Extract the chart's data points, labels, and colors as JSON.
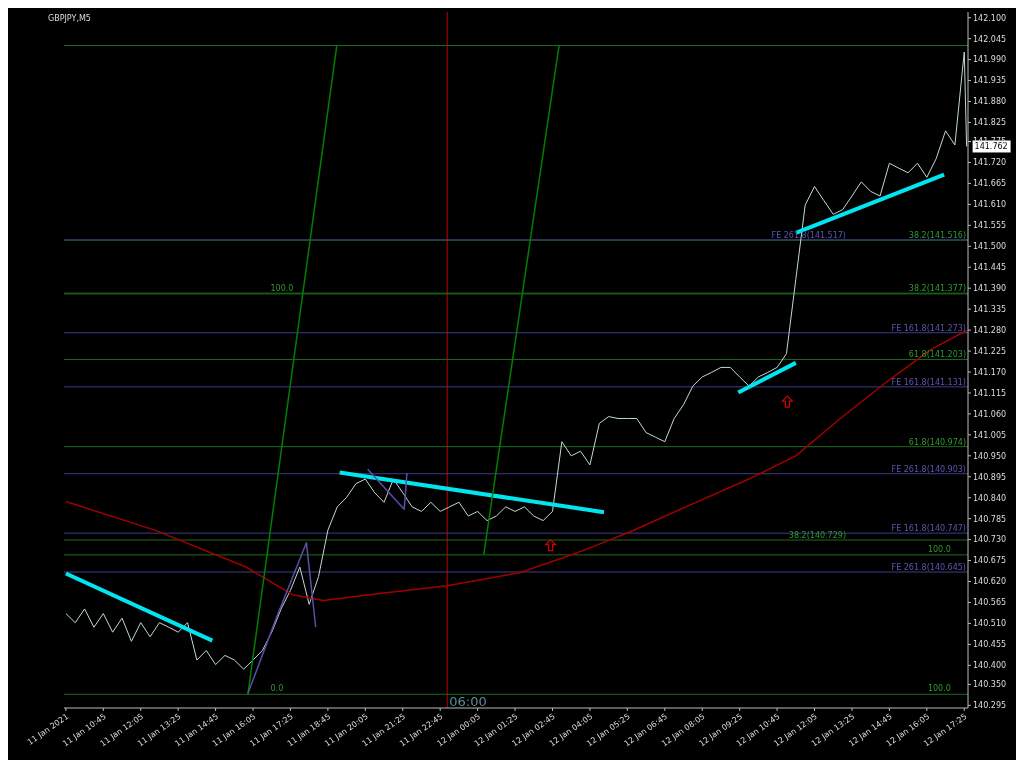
{
  "chart_data": {
    "type": "line",
    "title": "GBPJPY,M5",
    "grid": false,
    "x": [
      "2021-01-11T09:25",
      "2021-01-11T09:45",
      "2021-01-11T10:05",
      "2021-01-11T10:25",
      "2021-01-11T10:45",
      "2021-01-11T11:05",
      "2021-01-11T11:25",
      "2021-01-11T11:45",
      "2021-01-11T12:05",
      "2021-01-11T12:25",
      "2021-01-11T12:45",
      "2021-01-11T13:05",
      "2021-01-11T13:25",
      "2021-01-11T13:45",
      "2021-01-11T14:05",
      "2021-01-11T14:25",
      "2021-01-11T14:45",
      "2021-01-11T15:05",
      "2021-01-11T15:25",
      "2021-01-11T15:45",
      "2021-01-11T16:05",
      "2021-01-11T16:25",
      "2021-01-11T16:45",
      "2021-01-11T17:05",
      "2021-01-11T17:25",
      "2021-01-11T17:45",
      "2021-01-11T18:05",
      "2021-01-11T18:25",
      "2021-01-11T18:45",
      "2021-01-11T19:05",
      "2021-01-11T19:25",
      "2021-01-11T19:45",
      "2021-01-11T20:05",
      "2021-01-11T20:25",
      "2021-01-11T20:45",
      "2021-01-11T21:05",
      "2021-01-11T21:25",
      "2021-01-11T21:45",
      "2021-01-11T22:05",
      "2021-01-11T22:25",
      "2021-01-11T22:45",
      "2021-01-11T23:05",
      "2021-01-11T23:25",
      "2021-01-11T23:45",
      "2021-01-12T00:05",
      "2021-01-12T00:25",
      "2021-01-12T00:45",
      "2021-01-12T01:05",
      "2021-01-12T01:25",
      "2021-01-12T01:45",
      "2021-01-12T02:05",
      "2021-01-12T02:25",
      "2021-01-12T02:45",
      "2021-01-12T03:05",
      "2021-01-12T03:25",
      "2021-01-12T03:45",
      "2021-01-12T04:05",
      "2021-01-12T04:25",
      "2021-01-12T04:45",
      "2021-01-12T05:05",
      "2021-01-12T05:25",
      "2021-01-12T05:45",
      "2021-01-12T06:05",
      "2021-01-12T06:25",
      "2021-01-12T06:45",
      "2021-01-12T07:05",
      "2021-01-12T07:25",
      "2021-01-12T07:45",
      "2021-01-12T08:05",
      "2021-01-12T08:25",
      "2021-01-12T08:45",
      "2021-01-12T09:05",
      "2021-01-12T09:25",
      "2021-01-12T09:45",
      "2021-01-12T10:05",
      "2021-01-12T10:25",
      "2021-01-12T10:45",
      "2021-01-12T11:05",
      "2021-01-12T11:25",
      "2021-01-12T11:45",
      "2021-01-12T12:05",
      "2021-01-12T12:25",
      "2021-01-12T12:45",
      "2021-01-12T13:05",
      "2021-01-12T13:25",
      "2021-01-12T13:45",
      "2021-01-12T14:05",
      "2021-01-12T14:25",
      "2021-01-12T14:45",
      "2021-01-12T15:05",
      "2021-01-12T15:25",
      "2021-01-12T15:45",
      "2021-01-12T16:05",
      "2021-01-12T16:25",
      "2021-01-12T16:45",
      "2021-01-12T17:05",
      "2021-01-12T17:25",
      "2021-01-12T17:30"
    ],
    "series": [
      {
        "color": "#c0d8d8",
        "values": [
          140.536,
          140.512,
          140.548,
          140.5,
          140.536,
          140.487,
          140.524,
          140.463,
          140.512,
          140.475,
          140.512,
          140.5,
          140.487,
          140.512,
          140.414,
          140.439,
          140.402,
          140.426,
          140.414,
          140.39,
          140.414,
          140.439,
          140.487,
          140.548,
          140.597,
          140.658,
          140.56,
          140.633,
          140.755,
          140.816,
          140.841,
          140.877,
          140.889,
          140.853,
          140.828,
          140.889,
          140.853,
          140.816,
          140.804,
          140.828,
          140.804,
          140.816,
          140.828,
          140.792,
          140.804,
          140.78,
          140.792,
          140.816,
          140.804,
          140.816,
          140.792,
          140.78,
          140.804,
          140.987,
          140.95,
          140.962,
          140.926,
          141.035,
          141.053,
          141.048,
          141.048,
          141.048,
          141.011,
          140.999,
          140.987,
          141.048,
          141.084,
          141.133,
          141.157,
          141.169,
          141.182,
          141.182,
          141.157,
          141.133,
          141.157,
          141.169,
          141.182,
          141.218,
          141.413,
          141.608,
          141.657,
          141.62,
          141.584,
          141.596,
          141.632,
          141.669,
          141.644,
          141.632,
          141.718,
          141.705,
          141.693,
          141.718,
          141.681,
          141.73,
          141.803,
          141.766,
          142.01,
          141.762
        ]
      },
      {
        "type": "line",
        "color": "#a00000",
        "x": [
          "2021-01-11T09:25",
          "2021-01-11T12:35",
          "2021-01-11T15:50",
          "2021-01-11T17:30",
          "2021-01-11T18:35",
          "2021-01-11T20:45",
          "2021-01-11T23:00",
          "2021-01-12T01:35",
          "2021-01-12T03:35",
          "2021-01-12T05:30",
          "2021-01-12T07:30",
          "2021-01-12T09:45",
          "2021-01-12T11:25",
          "2021-01-12T13:00",
          "2021-01-12T14:40",
          "2021-01-12T16:15",
          "2021-01-12T17:30"
        ],
        "values": [
          140.83,
          140.755,
          140.658,
          140.585,
          140.57,
          140.59,
          140.609,
          140.643,
          140.694,
          140.75,
          140.816,
          140.889,
          140.95,
          141.048,
          141.145,
          141.23,
          141.279
        ]
      },
      {
        "type": "line",
        "color": "#00e5ee",
        "x": [
          "2021-01-11T09:25",
          "2021-01-11T14:38"
        ],
        "values": [
          140.641,
          140.465
        ]
      },
      {
        "type": "line",
        "color": "#00e5ee",
        "x": [
          "2021-01-11T19:10",
          "2021-01-12T04:35"
        ],
        "values": [
          140.906,
          140.802
        ]
      },
      {
        "type": "line",
        "color": "#00e5ee",
        "x": [
          "2021-01-12T09:22",
          "2021-01-12T11:25"
        ],
        "values": [
          141.116,
          141.194
        ]
      },
      {
        "type": "line",
        "color": "#00e5ee",
        "x": [
          "2021-01-12T11:25",
          "2021-01-12T16:42"
        ],
        "values": [
          141.535,
          141.688
        ]
      },
      {
        "type": "line",
        "color": "#008000",
        "x": [
          "2021-01-11T15:54",
          "2021-01-11T19:04"
        ],
        "values": [
          140.324,
          142.027
        ]
      },
      {
        "type": "line",
        "color": "#008000",
        "x": [
          "2021-01-12T00:18",
          "2021-01-12T02:59"
        ],
        "values": [
          140.69,
          142.027
        ]
      },
      {
        "type": "line",
        "color": "#5a4fa8",
        "x": [
          "2021-01-11T15:54",
          "2021-01-11T16:55",
          "2021-01-11T17:59",
          "2021-01-11T18:19"
        ],
        "values": [
          140.326,
          140.525,
          140.722,
          140.5
        ]
      },
      {
        "type": "line",
        "color": "#5a4fa8",
        "x": [
          "2021-01-11T20:10",
          "2021-01-11T21:28",
          "2021-01-11T21:34"
        ],
        "values": [
          140.915,
          140.81,
          140.905
        ]
      },
      {
        "type": "scatter",
        "color": "#d00000",
        "x": [
          "2021-01-12T02:41",
          "2021-01-12T11:07"
        ],
        "values": [
          140.714,
          141.091
        ]
      }
    ],
    "xlim": [
      "2021-01-11T09:21",
      "2021-01-12T17:33"
    ],
    "xticks": [
      {
        "value": "2021-01-11T09:25",
        "label": "11 Jan 2021"
      },
      {
        "value": "2021-01-11T10:45",
        "label": "11 Jan 10:45"
      },
      {
        "value": "2021-01-11T12:05",
        "label": "11 Jan 12:05"
      },
      {
        "value": "2021-01-11T13:25",
        "label": "11 Jan 13:25"
      },
      {
        "value": "2021-01-11T14:45",
        "label": "11 Jan 14:45"
      },
      {
        "value": "2021-01-11T16:05",
        "label": "11 Jan 16:05"
      },
      {
        "value": "2021-01-11T17:25",
        "label": "11 Jan 17:25"
      },
      {
        "value": "2021-01-11T18:45",
        "label": "11 Jan 18:45"
      },
      {
        "value": "2021-01-11T20:05",
        "label": "11 Jan 20:05"
      },
      {
        "value": "2021-01-11T21:25",
        "label": "11 Jan 21:25"
      },
      {
        "value": "2021-01-11T22:45",
        "label": "11 Jan 22:45"
      },
      {
        "value": "2021-01-12T00:05",
        "label": "12 Jan 00:05"
      },
      {
        "value": "2021-01-12T01:25",
        "label": "12 Jan 01:25"
      },
      {
        "value": "2021-01-12T02:45",
        "label": "12 Jan 02:45"
      },
      {
        "value": "2021-01-12T04:05",
        "label": "12 Jan 04:05"
      },
      {
        "value": "2021-01-12T05:25",
        "label": "12 Jan 05:25"
      },
      {
        "value": "2021-01-12T06:45",
        "label": "12 Jan 06:45"
      },
      {
        "value": "2021-01-12T08:05",
        "label": "12 Jan 08:05"
      },
      {
        "value": "2021-01-12T09:25",
        "label": "12 Jan 09:25"
      },
      {
        "value": "2021-01-12T10:45",
        "label": "12 Jan 10:45"
      },
      {
        "value": "2021-01-12T12:05",
        "label": "12 Jan 12:05"
      },
      {
        "value": "2021-01-12T13:25",
        "label": "12 Jan 13:25"
      },
      {
        "value": "2021-01-12T14:45",
        "label": "12 Jan 14:45"
      },
      {
        "value": "2021-01-12T16:05",
        "label": "12 Jan 16:05"
      },
      {
        "value": "2021-01-12T17:25",
        "label": "12 Jan 17:25"
      }
    ],
    "ylim": [
      140.288,
      142.115
    ],
    "yticks": [
      {
        "value": 142.1,
        "label": "142.100"
      },
      142.045,
      {
        "value": 141.99,
        "label": "141.990"
      },
      141.935,
      {
        "value": 141.88,
        "label": "141.880"
      },
      141.825,
      141.775,
      {
        "value": 141.72,
        "label": "141.720"
      },
      141.665,
      {
        "value": 141.61,
        "label": "141.610"
      },
      141.555,
      {
        "value": 141.5,
        "label": "141.500"
      },
      141.445,
      {
        "value": 141.39,
        "label": "141.390"
      },
      141.335,
      {
        "value": 141.28,
        "label": "141.280"
      },
      141.225,
      {
        "value": 141.17,
        "label": "141.170"
      },
      141.115,
      {
        "value": 141.06,
        "label": "141.060"
      },
      141.005,
      {
        "value": 140.95,
        "label": "140.950"
      },
      140.895,
      {
        "value": 140.84,
        "label": "140.840"
      },
      140.785,
      {
        "value": 140.73,
        "label": "140.730"
      },
      140.675,
      {
        "value": 140.62,
        "label": "140.620"
      },
      140.565,
      {
        "value": 140.51,
        "label": "140.510"
      },
      140.455,
      {
        "value": 140.4,
        "label": "140.400"
      },
      {
        "value": 140.35,
        "label": "140.350"
      },
      140.295
    ],
    "ref_lines": [
      {
        "axis": "x",
        "value": "2021-01-11T23:00",
        "label": "06:00",
        "color": "#c00000"
      },
      {
        "axis": "y",
        "value": 142.027,
        "label": null,
        "color": "#1e6a1e"
      },
      {
        "axis": "y",
        "value": 141.516,
        "label": "38.2(141.516)",
        "color": "#1e6a1e"
      },
      {
        "axis": "y",
        "value": 141.517,
        "label": "FE 261.8(141.517)",
        "color": "#3c3c8c"
      },
      {
        "axis": "y",
        "value": 141.377,
        "label": "38.2(141.377)",
        "color": "#1e6a1e"
      },
      {
        "axis": "y",
        "value": 141.375,
        "label": null,
        "color": "#1e6a1e"
      },
      {
        "axis": "y",
        "value": 141.273,
        "label": "FE 161.8(141.273)",
        "color": "#3c3c8c"
      },
      {
        "axis": "y",
        "value": 141.203,
        "label": "61.8(141.203)",
        "color": "#1e6a1e"
      },
      {
        "axis": "y",
        "value": 141.131,
        "label": "FE 161.8(141.131)",
        "color": "#3c3c8c"
      },
      {
        "axis": "y",
        "value": 140.974,
        "label": "61.8(140.974)",
        "color": "#1e6a1e"
      },
      {
        "axis": "y",
        "value": 140.903,
        "label": "FE 261.8(140.903)",
        "color": "#3c3c8c"
      },
      {
        "axis": "y",
        "value": 140.747,
        "label": "FE 161.8(140.747)",
        "color": "#3c3c8c"
      },
      {
        "axis": "y",
        "value": 140.729,
        "label": "38.2(140.729)",
        "color": "#1e6a1e"
      },
      {
        "axis": "y",
        "value": 140.69,
        "label": null,
        "color": "#1e6a1e"
      },
      {
        "axis": "y",
        "value": 140.645,
        "label": "FE 261.8(140.645)",
        "color": "#3c3c8c"
      },
      {
        "axis": "y",
        "value": 140.324,
        "label": null,
        "color": "#1e6a1e"
      }
    ],
    "annotations": [
      {
        "text": "141.762",
        "x": "2021-01-12T17:30",
        "y": 141.762
      },
      {
        "text": "100.0",
        "x": "2021-01-12T17:20",
        "y": 140.324
      },
      {
        "text": "100.0",
        "x": "2021-01-11T17:55",
        "y": 141.375
      },
      {
        "text": "100.0",
        "x": "2021-01-12T17:20",
        "y": 140.69
      },
      {
        "text": "0.0",
        "x": "2021-01-11T17:55",
        "y": 140.324
      }
    ]
  }
}
